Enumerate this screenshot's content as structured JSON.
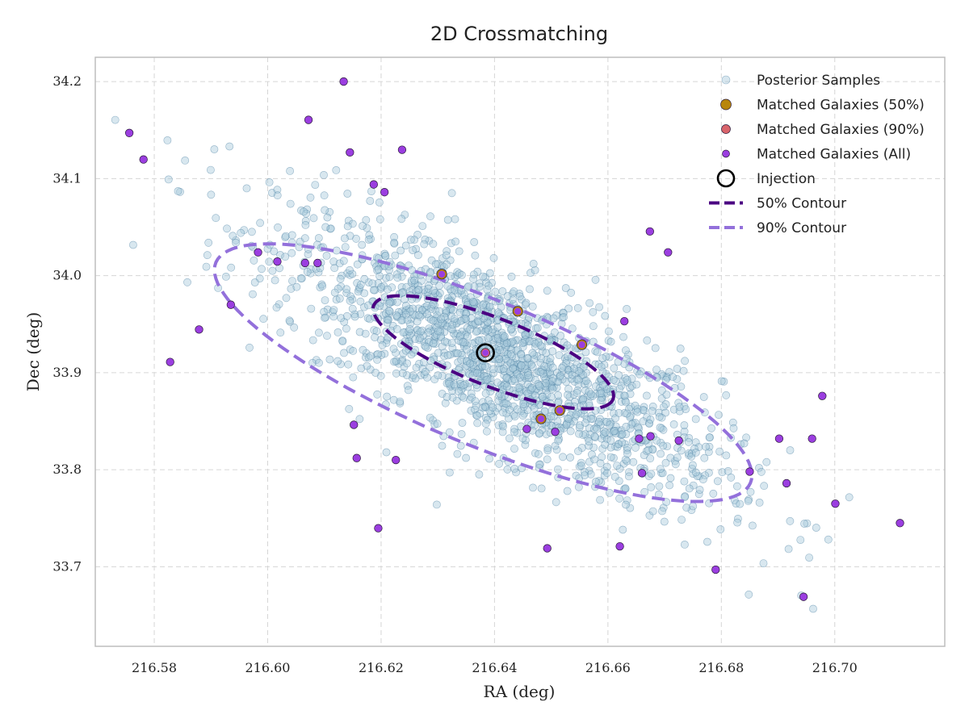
{
  "chart_data": {
    "type": "scatter",
    "title": "2D Crossmatching",
    "xlabel": "RA (deg)",
    "ylabel": "Dec (deg)",
    "xlim": [
      216.5696,
      216.7194
    ],
    "ylim": [
      33.618,
      34.225
    ],
    "x_ticks": [
      "216.58",
      "216.60",
      "216.62",
      "216.64",
      "216.66",
      "216.68",
      "216.70"
    ],
    "y_ticks": [
      "33.7",
      "33.8",
      "33.9",
      "34.0",
      "34.1",
      "34.2"
    ],
    "grid": true,
    "legend_position": "top-right",
    "colors": {
      "posterior": "#a9c9dc",
      "posterior_edge": "#4b7fa3",
      "matched_50": "#b8860b",
      "matched_90": "#d9646b",
      "matched_all": "#9b3ee0",
      "contour_50": "#4b0082",
      "contour_90": "#9370db",
      "injection": "#000000"
    },
    "posterior_samples": {
      "count": 1800,
      "center": [
        216.641,
        33.913
      ],
      "std_ra": 0.0195,
      "std_dec": 0.072,
      "correlation": -0.78,
      "seed": 12345
    },
    "injection": [
      216.6384,
      33.9205
    ],
    "matched_galaxies_50": [
      [
        216.6307,
        34.0015
      ],
      [
        216.6441,
        33.9632
      ],
      [
        216.6482,
        33.8524
      ],
      [
        216.6515,
        33.861
      ],
      [
        216.6554,
        33.9288
      ]
    ],
    "matched_galaxies_90": [
      [
        216.6384,
        33.9205
      ]
    ],
    "matched_galaxies_all": [
      [
        216.5756,
        34.147
      ],
      [
        216.5781,
        34.1197
      ],
      [
        216.5828,
        33.911
      ],
      [
        216.5879,
        33.9445
      ],
      [
        216.5935,
        33.97
      ],
      [
        216.5983,
        34.024
      ],
      [
        216.6017,
        34.0145
      ],
      [
        216.6066,
        34.013
      ],
      [
        216.6088,
        34.013
      ],
      [
        216.6072,
        34.1605
      ],
      [
        216.6134,
        34.2
      ],
      [
        216.6145,
        34.127
      ],
      [
        216.6152,
        33.8463
      ],
      [
        216.6157,
        33.812
      ],
      [
        216.6187,
        34.094
      ],
      [
        216.6206,
        34.086
      ],
      [
        216.6195,
        33.7397
      ],
      [
        216.6226,
        33.81
      ],
      [
        216.6237,
        34.1297
      ],
      [
        216.6307,
        34.0015
      ],
      [
        216.6441,
        33.9632
      ],
      [
        216.6384,
        33.9205
      ],
      [
        216.6457,
        33.842
      ],
      [
        216.6482,
        33.8524
      ],
      [
        216.6493,
        33.719
      ],
      [
        216.6507,
        33.839
      ],
      [
        216.6515,
        33.861
      ],
      [
        216.6554,
        33.9288
      ],
      [
        216.6629,
        33.953
      ],
      [
        216.6621,
        33.721
      ],
      [
        216.6674,
        34.0455
      ],
      [
        216.6655,
        33.832
      ],
      [
        216.666,
        33.7965
      ],
      [
        216.6675,
        33.8345
      ],
      [
        216.6706,
        34.024
      ],
      [
        216.6725,
        33.83
      ],
      [
        216.679,
        33.697
      ],
      [
        216.685,
        33.798
      ],
      [
        216.6902,
        33.832
      ],
      [
        216.6915,
        33.786
      ],
      [
        216.6945,
        33.669
      ],
      [
        216.696,
        33.832
      ],
      [
        216.6978,
        33.876
      ],
      [
        216.7001,
        33.765
      ],
      [
        216.7115,
        33.745
      ]
    ],
    "contour_50": {
      "center": [
        216.6398,
        33.921
      ],
      "semi_major_dec": 0.095,
      "semi_minor_dec": 0.032,
      "angle_deg": -33,
      "scale_ra_per_dec": 0.26
    },
    "contour_90": {
      "center": [
        216.638,
        33.9
      ],
      "semi_major_dec": 0.215,
      "semi_minor_dec": 0.068,
      "angle_deg": -34,
      "scale_ra_per_dec": 0.26
    },
    "legend": [
      {
        "key": "posterior",
        "label": "Posterior Samples"
      },
      {
        "key": "matched_50",
        "label": "Matched Galaxies (50%)"
      },
      {
        "key": "matched_90",
        "label": "Matched Galaxies (90%)"
      },
      {
        "key": "matched_all",
        "label": "Matched Galaxies (All)"
      },
      {
        "key": "injection",
        "label": "Injection"
      },
      {
        "key": "contour_50",
        "label": "50% Contour"
      },
      {
        "key": "contour_90",
        "label": "90% Contour"
      }
    ]
  }
}
